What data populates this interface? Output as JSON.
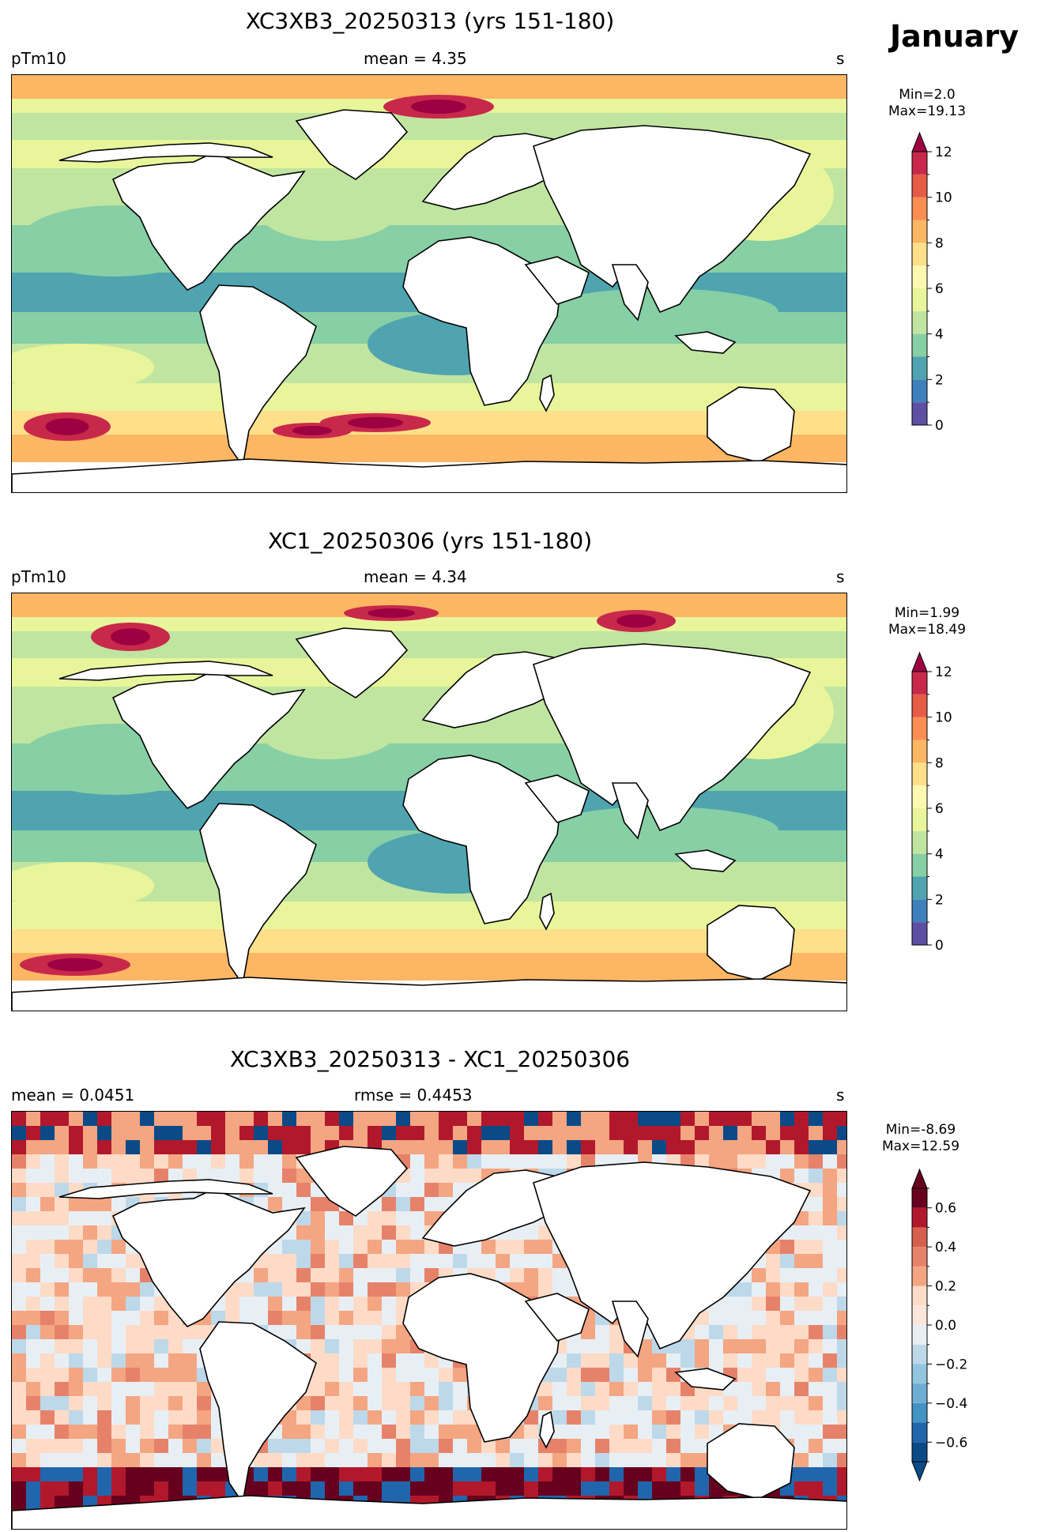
{
  "figure": {
    "month_label": "January"
  },
  "panels": [
    {
      "title": "XC3XB3_20250313 (yrs 151-180)",
      "left_label": "pTm10",
      "center_label": "mean = 4.35",
      "right_label": "s",
      "colorbar": {
        "min_label": "Min=2.0",
        "max_label": "Max=19.13",
        "ticks": [
          "0",
          "2",
          "4",
          "6",
          "8",
          "10",
          "12"
        ],
        "levels": [
          0,
          1,
          2,
          3,
          4,
          5,
          6,
          7,
          8,
          9,
          10,
          11,
          12
        ],
        "colors": [
          "#5e4fa2",
          "#3f7fbc",
          "#4fa4b0",
          "#87cfa4",
          "#c0e5a0",
          "#e8f59a",
          "#fbf8b0",
          "#fee08b",
          "#fdb663",
          "#f98e52",
          "#e55c46",
          "#c8294b",
          "#9e0142"
        ],
        "extend": "max"
      }
    },
    {
      "title": "XC1_20250306 (yrs 151-180)",
      "left_label": "pTm10",
      "center_label": "mean = 4.34",
      "right_label": "s",
      "colorbar": {
        "min_label": "Min=1.99",
        "max_label": "Max=18.49",
        "ticks": [
          "0",
          "2",
          "4",
          "6",
          "8",
          "10",
          "12"
        ],
        "levels": [
          0,
          1,
          2,
          3,
          4,
          5,
          6,
          7,
          8,
          9,
          10,
          11,
          12
        ],
        "colors": [
          "#5e4fa2",
          "#3f7fbc",
          "#4fa4b0",
          "#87cfa4",
          "#c0e5a0",
          "#e8f59a",
          "#fbf8b0",
          "#fee08b",
          "#fdb663",
          "#f98e52",
          "#e55c46",
          "#c8294b",
          "#9e0142"
        ],
        "extend": "max"
      }
    },
    {
      "title": "XC3XB3_20250313 - XC1_20250306",
      "left_label": "mean = 0.0451",
      "center_label": "rmse = 0.4453",
      "right_label": "s",
      "colorbar": {
        "min_label": "Min=-8.69",
        "max_label": "Max=12.59",
        "ticks": [
          "−0.6",
          "−0.4",
          "−0.2",
          "0.0",
          "0.2",
          "0.4",
          "0.6"
        ],
        "tick_values": [
          -0.6,
          -0.4,
          -0.2,
          0.0,
          0.2,
          0.4,
          0.6
        ],
        "levels": [
          -0.7,
          -0.6,
          -0.5,
          -0.4,
          -0.3,
          -0.2,
          -0.1,
          0.0,
          0.1,
          0.2,
          0.3,
          0.4,
          0.5,
          0.6,
          0.7
        ],
        "colors": [
          "#0b4a86",
          "#2166ac",
          "#4393c3",
          "#6faed4",
          "#92c5de",
          "#bdd8e9",
          "#e7eff5",
          "#fbe6dc",
          "#fddbc7",
          "#f4a582",
          "#e7826a",
          "#d6604d",
          "#b2182b",
          "#67001f"
        ],
        "extend": "both"
      }
    }
  ]
}
